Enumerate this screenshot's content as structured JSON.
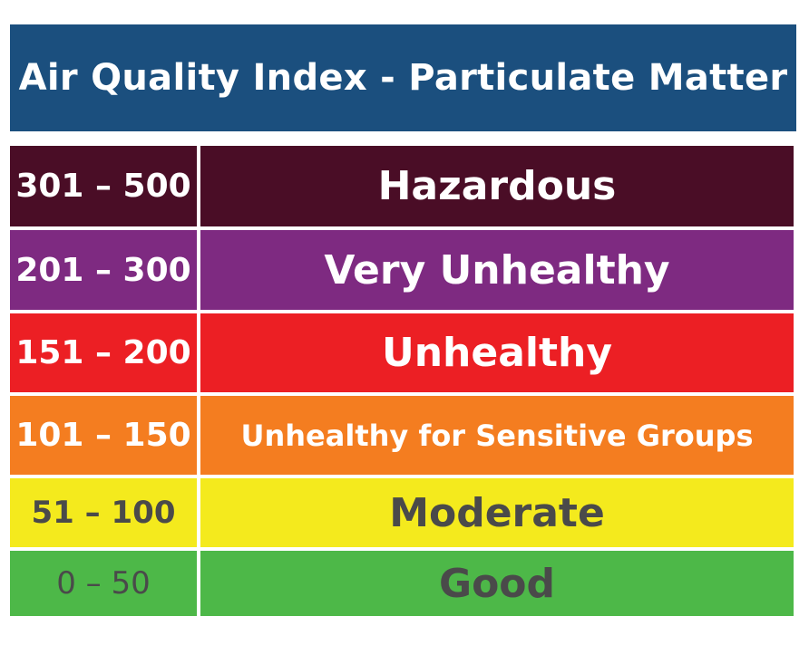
{
  "title": "Air Quality Index - Particulate Matter",
  "colors": {
    "title_background": "#1b4f7e",
    "hazardous": "#4a0d26",
    "very_unhealthy": "#7e2a81",
    "unhealthy": "#ec1f24",
    "unhealthy_for_sensitive_groups": "#f47d20",
    "moderate": "#f4ea1d",
    "good": "#4db848"
  },
  "rows": [
    {
      "range": "301 – 500",
      "category": "Hazardous"
    },
    {
      "range": "201 – 300",
      "category": "Very Unhealthy"
    },
    {
      "range": "151 – 200",
      "category": "Unhealthy"
    },
    {
      "range": "101 – 150",
      "category": "Unhealthy for Sensitive Groups"
    },
    {
      "range": "51 – 100",
      "category": "Moderate"
    },
    {
      "range": "0 – 50",
      "category": "Good"
    }
  ]
}
